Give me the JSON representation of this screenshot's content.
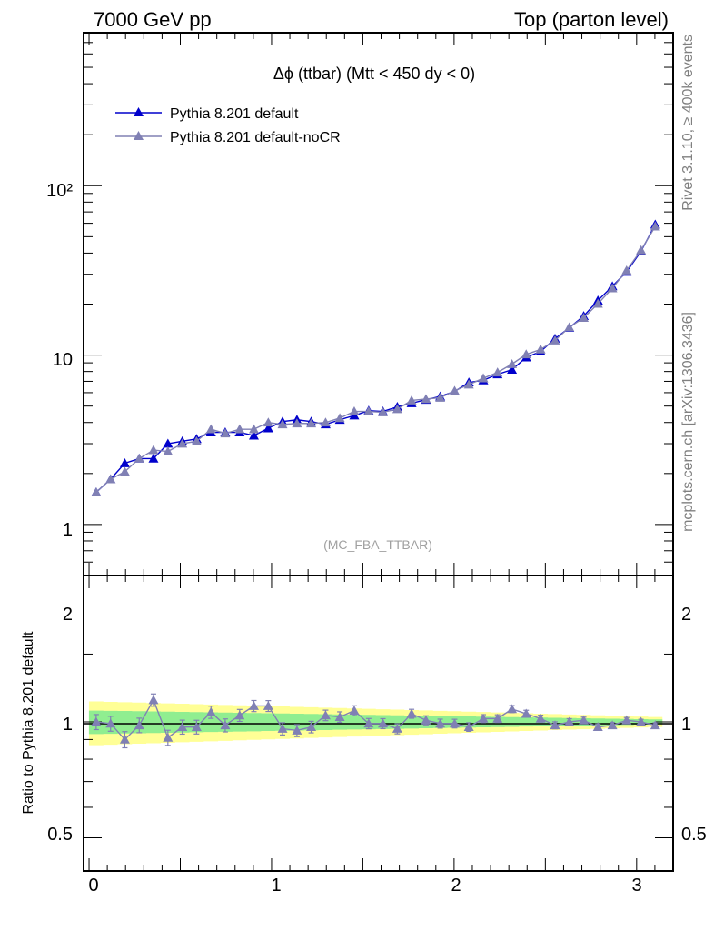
{
  "header": {
    "left": "7000 GeV pp",
    "right": "Top (parton level)"
  },
  "side_text": {
    "top": "Rivet 3.1.10, ≥ 400k events",
    "bottom": "mcplots.cern.ch [arXiv:1306.3436]"
  },
  "chart_data": [
    {
      "type": "line",
      "title": "Δϕ (ttbar) (Mtt < 450 dy < 0)",
      "watermark": "(MC_FBA_TTBAR)",
      "xlim": [
        -0.03,
        3.2
      ],
      "ylim": [
        0.5,
        800
      ],
      "yscale": "log",
      "ytick_labels": [
        "1",
        "10",
        "10²"
      ],
      "xtick_labels": [
        "0",
        "1",
        "2",
        "3"
      ],
      "legend_position": "top-left",
      "x": [
        0.039,
        0.118,
        0.196,
        0.275,
        0.353,
        0.432,
        0.511,
        0.589,
        0.668,
        0.746,
        0.825,
        0.903,
        0.982,
        1.06,
        1.139,
        1.217,
        1.296,
        1.374,
        1.453,
        1.532,
        1.61,
        1.689,
        1.767,
        1.846,
        1.924,
        2.003,
        2.081,
        2.16,
        2.238,
        2.317,
        2.395,
        2.474,
        2.553,
        2.631,
        2.71,
        2.788,
        2.867,
        2.945,
        3.024,
        3.102
      ],
      "series": [
        {
          "name": "Pythia 8.201 default",
          "color": "#0000cc",
          "values": [
            1.55,
            1.85,
            2.3,
            2.45,
            2.45,
            3.0,
            3.1,
            3.2,
            3.5,
            3.5,
            3.5,
            3.35,
            3.7,
            4.05,
            4.15,
            4.05,
            3.9,
            4.15,
            4.4,
            4.7,
            4.65,
            4.95,
            5.2,
            5.45,
            5.7,
            6.1,
            6.9,
            7.1,
            7.7,
            8.2,
            9.7,
            10.5,
            12.5,
            14.5,
            17.0,
            21.0,
            25.5,
            31.0,
            41.0,
            59.0
          ]
        },
        {
          "name": "Pythia 8.201 default-noCR",
          "color": "#8080b4",
          "values": [
            1.55,
            1.85,
            2.05,
            2.45,
            2.75,
            2.7,
            3.0,
            3.1,
            3.65,
            3.45,
            3.65,
            3.65,
            4.0,
            3.9,
            3.95,
            3.95,
            4.0,
            4.25,
            4.65,
            4.65,
            4.6,
            4.8,
            5.4,
            5.5,
            5.6,
            6.15,
            6.7,
            7.3,
            7.9,
            8.85,
            10.1,
            10.8,
            12.2,
            14.6,
            16.6,
            20.1,
            24.8,
            31.6,
            41.6,
            57.5
          ]
        }
      ]
    },
    {
      "type": "line",
      "ylabel": "Ratio to Pythia 8.201 default",
      "xlim": [
        -0.03,
        3.2
      ],
      "ylim": [
        0.41,
        2.4
      ],
      "yscale": "log",
      "ytick_labels": [
        "0.5",
        "1",
        "2"
      ],
      "reference_line": 1,
      "band_colors": {
        "inner": "#90ee90",
        "outer": "#ffff96"
      },
      "series": [
        {
          "name": "Pythia 8.201 default-noCR",
          "color": "#8080b4",
          "values": [
            1.0,
            0.99,
            0.9,
            0.98,
            1.14,
            0.91,
            0.97,
            0.97,
            1.06,
            0.98,
            1.04,
            1.1,
            1.1,
            0.96,
            0.95,
            0.97,
            1.04,
            1.03,
            1.07,
            0.99,
            0.99,
            0.96,
            1.05,
            1.01,
            0.99,
            0.99,
            0.97,
            1.02,
            1.02,
            1.08,
            1.05,
            1.02,
            0.98,
            1.0,
            1.01,
            0.97,
            0.98,
            1.01,
            1.0,
            0.98
          ]
        }
      ]
    }
  ]
}
